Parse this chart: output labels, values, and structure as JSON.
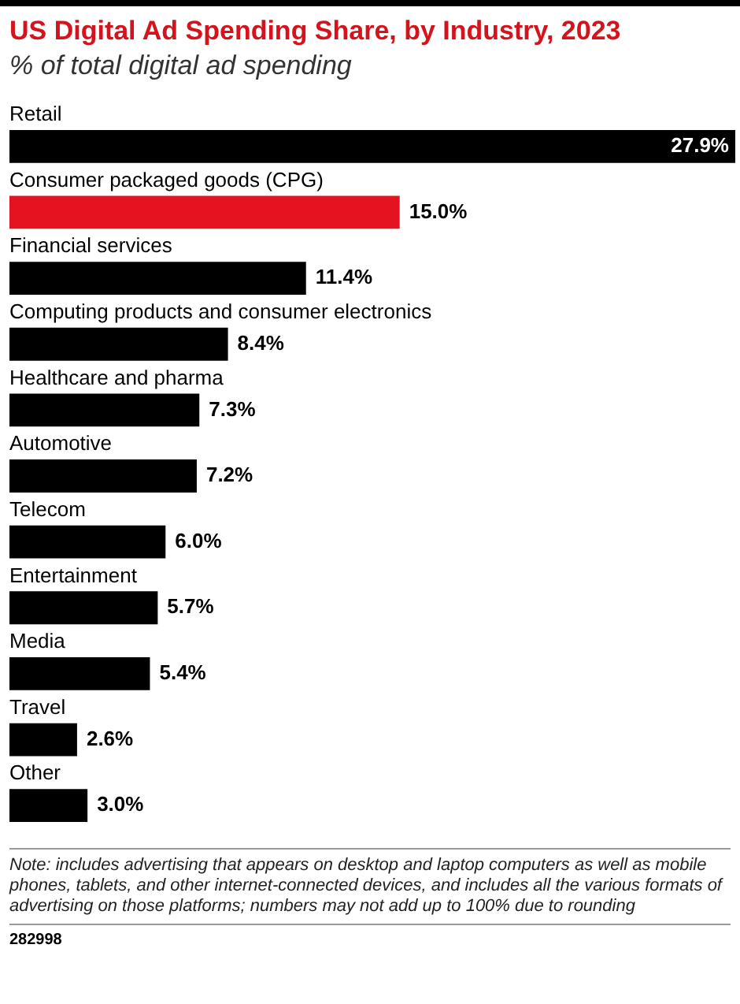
{
  "chart_data": {
    "type": "bar",
    "orientation": "horizontal",
    "title": "US Digital Ad Spending Share, by Industry, 2023",
    "subtitle": "% of total digital ad spending",
    "categories": [
      "Retail",
      "Consumer packaged goods (CPG)",
      "Financial services",
      "Computing products and consumer electronics",
      "Healthcare and pharma",
      "Automotive",
      "Telecom",
      "Entertainment",
      "Media",
      "Travel",
      "Other"
    ],
    "values": [
      27.9,
      15.0,
      11.4,
      8.4,
      7.3,
      7.2,
      6.0,
      5.7,
      5.4,
      2.6,
      3.0
    ],
    "value_labels": [
      "27.9%",
      "15.0%",
      "11.4%",
      "8.4%",
      "7.3%",
      "7.2%",
      "6.0%",
      "5.7%",
      "5.4%",
      "2.6%",
      "3.0%"
    ],
    "colors": [
      "#000000",
      "#e3141f",
      "#000000",
      "#000000",
      "#000000",
      "#000000",
      "#000000",
      "#000000",
      "#000000",
      "#000000",
      "#000000"
    ],
    "tick_labels": false,
    "legend": false,
    "annotations": [
      "Note: includes advertising that appears on desktop and laptop computers as well as mobile phones, tablets, and other internet-connected devices, and includes all the various formats of advertising on those platforms; numbers may not add up to 100% due to rounding",
      "282998"
    ]
  }
}
